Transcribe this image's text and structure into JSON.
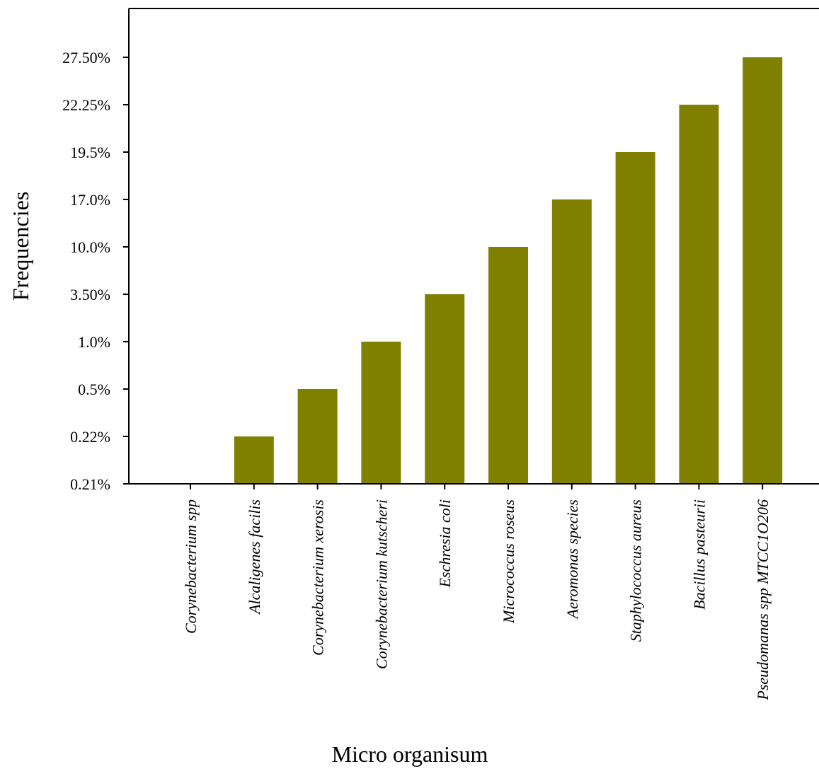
{
  "chart_data": {
    "type": "bar",
    "title": "",
    "xlabel": "Micro organisum",
    "ylabel": "Frequencies",
    "y_ticks": [
      "0.21%",
      "0.22%",
      "0.5%",
      "1.0%",
      "3.50%",
      "10.0%",
      "17.0%",
      "19.5%",
      "22.25%",
      "27.50%"
    ],
    "categories": [
      "Corynebacterium spp",
      "Alcaligenes facilis",
      "Corynebacterium xerosis",
      "Corynebacterium kutscheri",
      "Eschresia coli",
      "Micrococcus roseus",
      "Aeromonas species",
      "Staphylococcus aureus",
      "Bacillus pasteurii",
      "Pseudomanas spp MTCC1O206"
    ],
    "values": [
      0.21,
      0.22,
      0.5,
      1.0,
      3.5,
      10.0,
      17.0,
      19.5,
      22.25,
      27.5
    ],
    "value_unit": "%",
    "y_scale": "categorical (equally spaced tick labels)",
    "grid": false,
    "legend": "none",
    "bar_color": "#808000",
    "axis_color": "#000000"
  }
}
